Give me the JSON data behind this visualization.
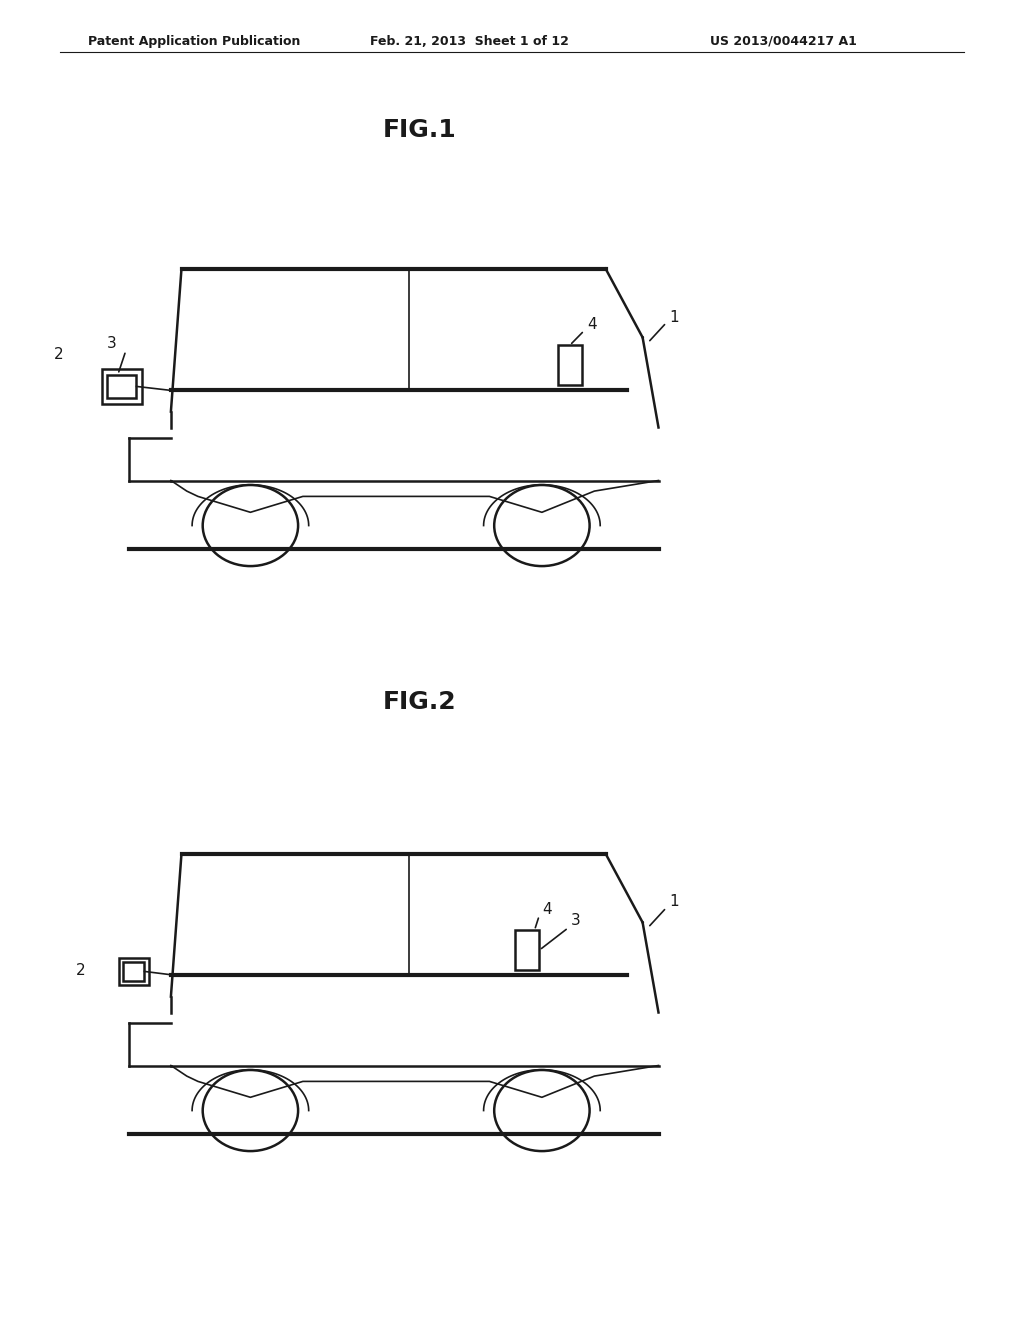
{
  "background_color": "#ffffff",
  "line_color": "#1a1a1a",
  "text_color": "#1a1a1a",
  "header_left": "Patent Application Publication",
  "header_center": "Feb. 21, 2013  Sheet 1 of 12",
  "header_right": "US 2013/0044217 A1",
  "fig1_label": "FIG.1",
  "fig2_label": "FIG.2",
  "lw": 1.8,
  "lw_thick": 3.0,
  "lw_thin": 1.2
}
